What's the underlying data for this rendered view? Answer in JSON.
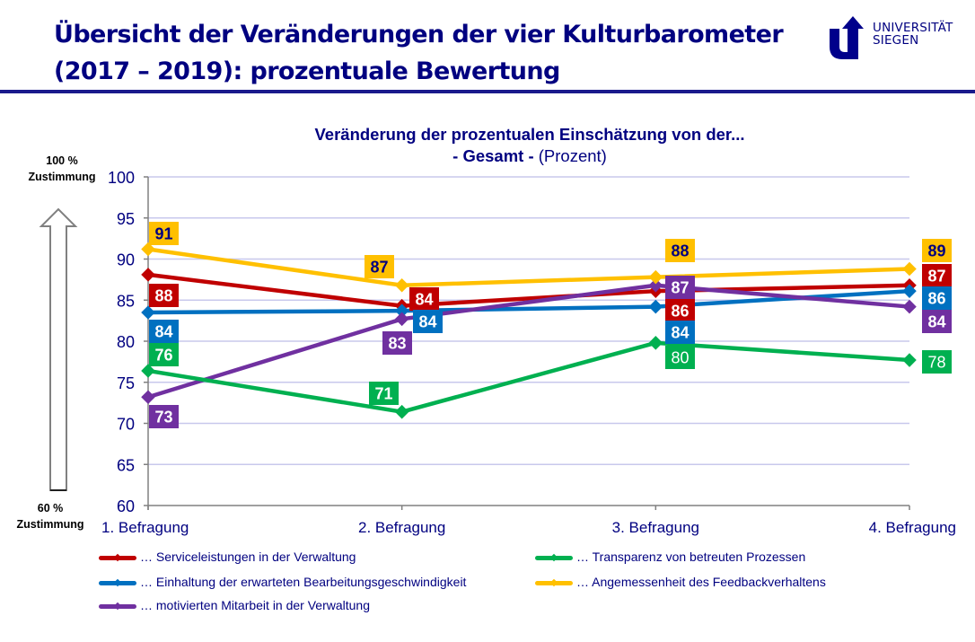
{
  "slide": {
    "title_line1": "Übersicht der Veränderungen der vier Kulturbarometer",
    "title_line2": "(2017 – 2019): prozentuale Bewertung",
    "logo_line1": "UNIVERSITÄT",
    "logo_line2": "SIEGEN",
    "logo_color": "#00008B",
    "side_top_line1": "100 %",
    "side_top_line2": "Zustimmung",
    "side_bottom_line1": "60 %",
    "side_bottom_line2": "Zustimmung"
  },
  "chart_data": {
    "type": "line",
    "title": "Veränderung der prozentualen Einschätzung von der...",
    "subtitle_bold": "- Gesamt -",
    "subtitle_normal": "(Prozent)",
    "xlabel": "",
    "ylabel": "",
    "categories": [
      "1. Befragung",
      "2. Befragung",
      "3. Befragung",
      "4. Befragung"
    ],
    "ylim": [
      60,
      100
    ],
    "yticks": [
      60,
      65,
      70,
      75,
      80,
      85,
      90,
      95,
      100
    ],
    "grid": true,
    "legend_position": "bottom",
    "series": [
      {
        "name": "… Serviceleistungen  in der Verwaltung",
        "color": "#C00000",
        "values": [
          88,
          84,
          86,
          87
        ],
        "points": [
          88.1,
          84.3,
          86.1,
          86.8
        ],
        "label_text_color": "#ffffff"
      },
      {
        "name": "… Einhaltung  der erwarteten  Bearbeitungsgeschwindigkeit",
        "color": "#0070C0",
        "values": [
          84,
          84,
          84,
          86
        ],
        "points": [
          83.5,
          83.7,
          84.2,
          86.1
        ],
        "label_text_color": "#ffffff"
      },
      {
        "name": "… motivierten  Mitarbeit  in der Verwaltung",
        "color": "#7030A0",
        "values": [
          73,
          83,
          87,
          84
        ],
        "points": [
          73.2,
          82.7,
          86.8,
          84.2
        ],
        "label_text_color": "#ffffff"
      },
      {
        "name": "… Transparenz  von betreuten  Prozessen",
        "color": "#00B050",
        "values": [
          76,
          71,
          80,
          78
        ],
        "points": [
          76.4,
          71.4,
          79.8,
          77.7
        ],
        "label_text_color": "#ffffff"
      },
      {
        "name": "… Angemessenheit  des Feedbackverhaltens",
        "color": "#FFC000",
        "values": [
          91,
          87,
          88,
          89
        ],
        "points": [
          91.2,
          86.8,
          87.8,
          88.8
        ],
        "label_text_color": "#000080"
      }
    ]
  }
}
